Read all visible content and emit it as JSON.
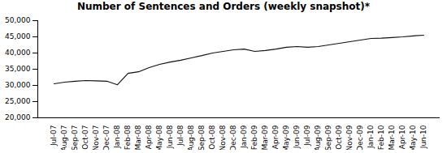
{
  "chart_data": {
    "type": "line",
    "title": "Number of Sentences and Orders (weekly snapshot)*",
    "categories": [
      "Jul-07",
      "Aug-07",
      "Sep-07",
      "Oct-07",
      "Nov-07",
      "Dec-07",
      "Jan-08",
      "Feb-08",
      "Mar-08",
      "Apr-08",
      "May-08",
      "Jun-08",
      "Jul-08",
      "Aug-08",
      "Sep-08",
      "Oct-08",
      "Nov-08",
      "Dec-08",
      "Jan-09",
      "Feb-09",
      "Mar-09",
      "Apr-09",
      "May-09",
      "Jun-09",
      "Jul-09",
      "Aug-09",
      "Sep-09",
      "Oct-09",
      "Nov-09",
      "Dec-09",
      "Jan-10",
      "Feb-10",
      "Mar-10",
      "Apr-10",
      "May-10",
      "Jun-10"
    ],
    "values": [
      30500,
      31000,
      31300,
      31500,
      31400,
      31300,
      30200,
      33700,
      34200,
      35500,
      36500,
      37200,
      37800,
      38500,
      39200,
      40000,
      40500,
      41000,
      41200,
      40500,
      40800,
      41200,
      41800,
      42000,
      41800,
      42000,
      42500,
      43000,
      43500,
      44000,
      44500,
      44600,
      44800,
      45000,
      45300,
      45500
    ],
    "color": "#111111",
    "ylim": [
      20000,
      50000
    ],
    "yticks": [
      {
        "value": 20000,
        "label": "20,000"
      },
      {
        "value": 25000,
        "label": "25,000"
      },
      {
        "value": 30000,
        "label": "30,000"
      },
      {
        "value": 35000,
        "label": "35,000"
      },
      {
        "value": 40000,
        "label": "40,000"
      },
      {
        "value": 45000,
        "label": "45,000"
      },
      {
        "value": 50000,
        "label": "50,000"
      }
    ],
    "grid": false
  }
}
